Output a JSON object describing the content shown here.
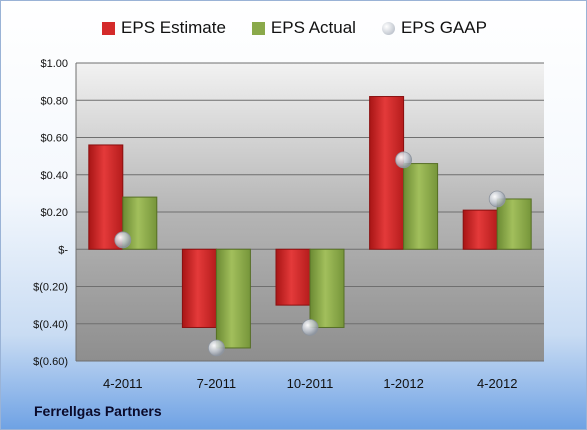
{
  "colors": {
    "estimate": "#d42a2a",
    "actual": "#8aa94a",
    "gaap": "#b0b7c2"
  },
  "footer": {
    "company": "Ferrellgas Partners"
  },
  "chart_data": {
    "type": "bar",
    "categories": [
      "4-2011",
      "7-2011",
      "10-2011",
      "1-2012",
      "4-2012"
    ],
    "series": [
      {
        "name": "EPS Estimate",
        "type": "bar",
        "values": [
          0.56,
          -0.42,
          -0.3,
          0.82,
          0.21
        ]
      },
      {
        "name": "EPS Actual",
        "type": "bar",
        "values": [
          0.28,
          -0.53,
          -0.42,
          0.46,
          0.27
        ]
      },
      {
        "name": "EPS GAAP",
        "type": "scatter",
        "values": [
          0.05,
          -0.53,
          -0.42,
          0.48,
          0.27
        ]
      }
    ],
    "ylim": [
      -0.6,
      1.0
    ],
    "yticks": [
      1.0,
      0.8,
      0.6,
      0.4,
      0.2,
      0,
      -0.2,
      -0.4,
      -0.6
    ],
    "ytick_labels": [
      "$1.00",
      "$0.80",
      "$0.60",
      "$0.40",
      "$0.20",
      "$-",
      "$(0.20)",
      "$(0.40)",
      "$(0.60)"
    ],
    "grid": true,
    "legend_position": "top"
  }
}
